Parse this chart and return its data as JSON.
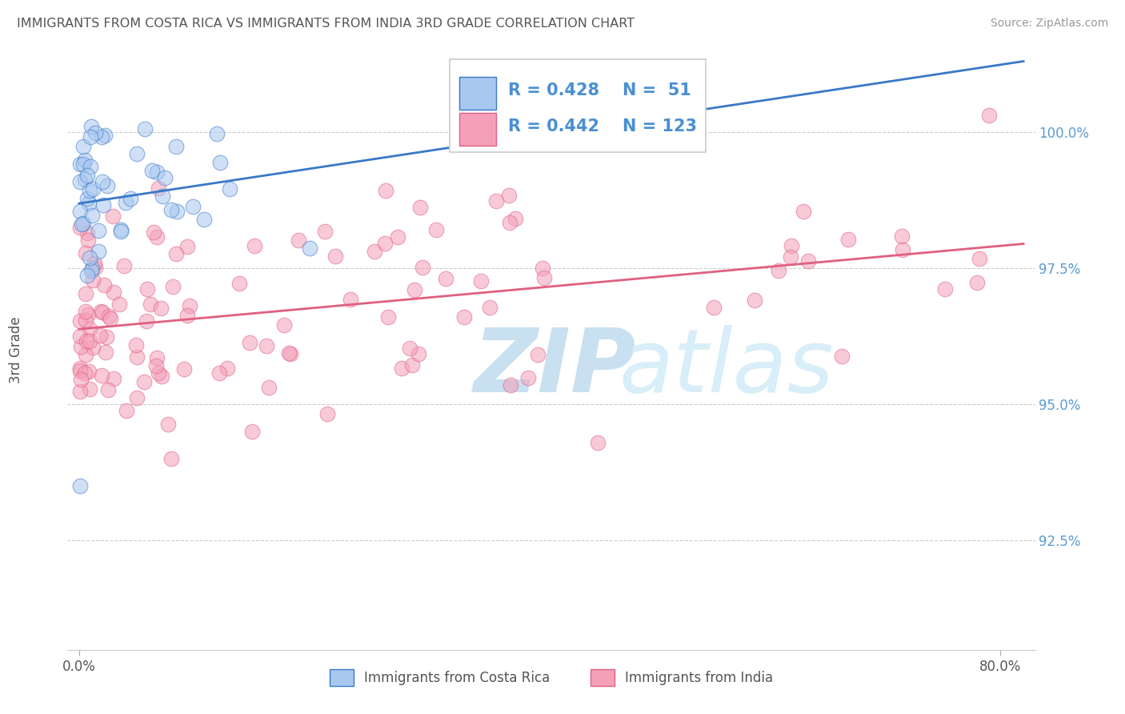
{
  "title": "IMMIGRANTS FROM COSTA RICA VS IMMIGRANTS FROM INDIA 3RD GRADE CORRELATION CHART",
  "source": "Source: ZipAtlas.com",
  "ylabel": "3rd Grade",
  "yticks": [
    92.5,
    95.0,
    97.5,
    100.0
  ],
  "ylim": [
    90.5,
    101.5
  ],
  "xlim": [
    -1.0,
    83.0
  ],
  "legend_r1": "0.428",
  "legend_n1": "51",
  "legend_r2": "0.442",
  "legend_n2": "123",
  "color_cr": "#A8C8F0",
  "color_india": "#F4A0B8",
  "trendline_cr": "#3A78C9",
  "trendline_india": "#E06080",
  "watermark_color": "#C8E0F0"
}
